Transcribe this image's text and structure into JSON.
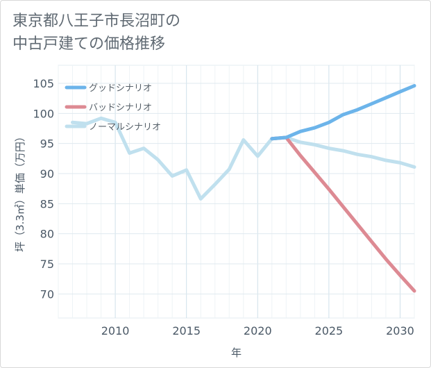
{
  "title_line1": "東京都八王子市長沼町の",
  "title_line2": "中古戸建ての価格推移",
  "chart_data": {
    "type": "line",
    "title": "東京都八王子市長沼町の中古戸建ての価格推移",
    "xlabel": "年",
    "ylabel": "坪（3.3㎡）単価（万円）",
    "xlim": [
      2006,
      2031
    ],
    "ylim": [
      66,
      108
    ],
    "x_ticks": [
      2010,
      2015,
      2020,
      2025,
      2030
    ],
    "y_ticks": [
      70,
      75,
      80,
      85,
      90,
      95,
      100,
      105
    ],
    "grid": true,
    "legend_position": "top-left",
    "series": [
      {
        "name": "グッドシナリオ",
        "color": "#6cb4ea",
        "x": [
          2021,
          2022,
          2023,
          2024,
          2025,
          2026,
          2027,
          2028,
          2029,
          2030,
          2031
        ],
        "values": [
          95.8,
          96.0,
          97.0,
          97.6,
          98.5,
          99.8,
          100.6,
          101.6,
          102.6,
          103.6,
          104.6
        ]
      },
      {
        "name": "バッドシナリオ",
        "color": "#dd8a93",
        "x": [
          2021,
          2022,
          2023,
          2024,
          2025,
          2026,
          2027,
          2028,
          2029,
          2030,
          2031
        ],
        "values": [
          95.8,
          96.0,
          93.0,
          90.2,
          87.4,
          84.5,
          81.6,
          78.7,
          75.8,
          73.1,
          70.5
        ]
      },
      {
        "name": "ノーマルシナリオ",
        "color": "#c0e0ee",
        "x": [
          2007,
          2008,
          2009,
          2010,
          2011,
          2012,
          2013,
          2014,
          2015,
          2016,
          2017,
          2018,
          2019,
          2020,
          2021,
          2022,
          2023,
          2024,
          2025,
          2026,
          2027,
          2028,
          2029,
          2030,
          2031
        ],
        "values": [
          98.5,
          98.3,
          99.2,
          98.5,
          93.4,
          94.2,
          92.3,
          89.6,
          90.6,
          85.8,
          88.2,
          90.7,
          95.6,
          92.9,
          95.8,
          96.0,
          95.2,
          94.8,
          94.2,
          93.8,
          93.2,
          92.8,
          92.2,
          91.8,
          91.1
        ]
      }
    ]
  }
}
